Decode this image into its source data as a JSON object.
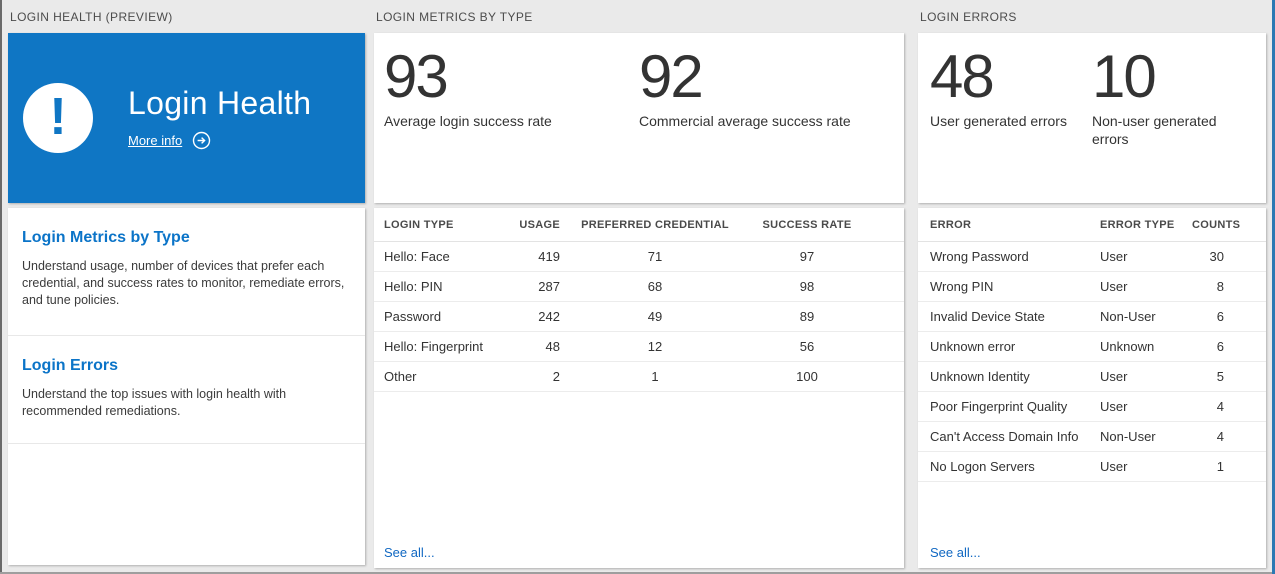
{
  "colors": {
    "tile_blue": "#0f76c4",
    "accent_blue": "#0b74c8",
    "link_blue": "#1168c2",
    "page_bg": "#eaeaea"
  },
  "columns": {
    "health": {
      "header": "LOGIN HEALTH (PREVIEW)",
      "tile": {
        "title": "Login Health",
        "link": "More info",
        "icon": "exclamation-circle-icon",
        "link_icon": "arrow-right-circle-icon"
      },
      "sections": [
        {
          "title": "Login Metrics by Type",
          "description": "Understand usage, number of devices that prefer each credential, and success rates to monitor, remediate errors, and tune policies."
        },
        {
          "title": "Login Errors",
          "description": "Understand the top issues with login health with recommended remediations."
        }
      ]
    },
    "metrics": {
      "header": "LOGIN METRICS BY TYPE",
      "stats": [
        {
          "value": "93",
          "label": "Average login success rate"
        },
        {
          "value": "92",
          "label": "Commercial average success rate"
        }
      ],
      "table": {
        "headers": [
          "LOGIN TYPE",
          "USAGE",
          "PREFERRED CREDENTIAL",
          "SUCCESS RATE"
        ],
        "rows": [
          [
            "Hello: Face",
            "419",
            "71",
            "97"
          ],
          [
            "Hello: PIN",
            "287",
            "68",
            "98"
          ],
          [
            "Password",
            "242",
            "49",
            "89"
          ],
          [
            "Hello: Fingerprint",
            "48",
            "12",
            "56"
          ],
          [
            "Other",
            "2",
            "1",
            "100"
          ]
        ]
      },
      "see_all": "See all..."
    },
    "errors": {
      "header": "LOGIN ERRORS",
      "stats": [
        {
          "value": "48",
          "label": "User generated errors"
        },
        {
          "value": "10",
          "label": "Non-user generated errors"
        }
      ],
      "table": {
        "headers": [
          "ERROR",
          "ERROR TYPE",
          "COUNTS"
        ],
        "rows": [
          [
            "Wrong Password",
            "User",
            "30"
          ],
          [
            "Wrong PIN",
            "User",
            "8"
          ],
          [
            "Invalid Device State",
            "Non-User",
            "6"
          ],
          [
            "Unknown error",
            "Unknown",
            "6"
          ],
          [
            "Unknown Identity",
            "User",
            "5"
          ],
          [
            "Poor Fingerprint Quality",
            "User",
            "4"
          ],
          [
            "Can't Access Domain Info",
            "Non-User",
            "4"
          ],
          [
            "No Logon Servers",
            "User",
            "1"
          ]
        ]
      },
      "see_all": "See all..."
    }
  }
}
